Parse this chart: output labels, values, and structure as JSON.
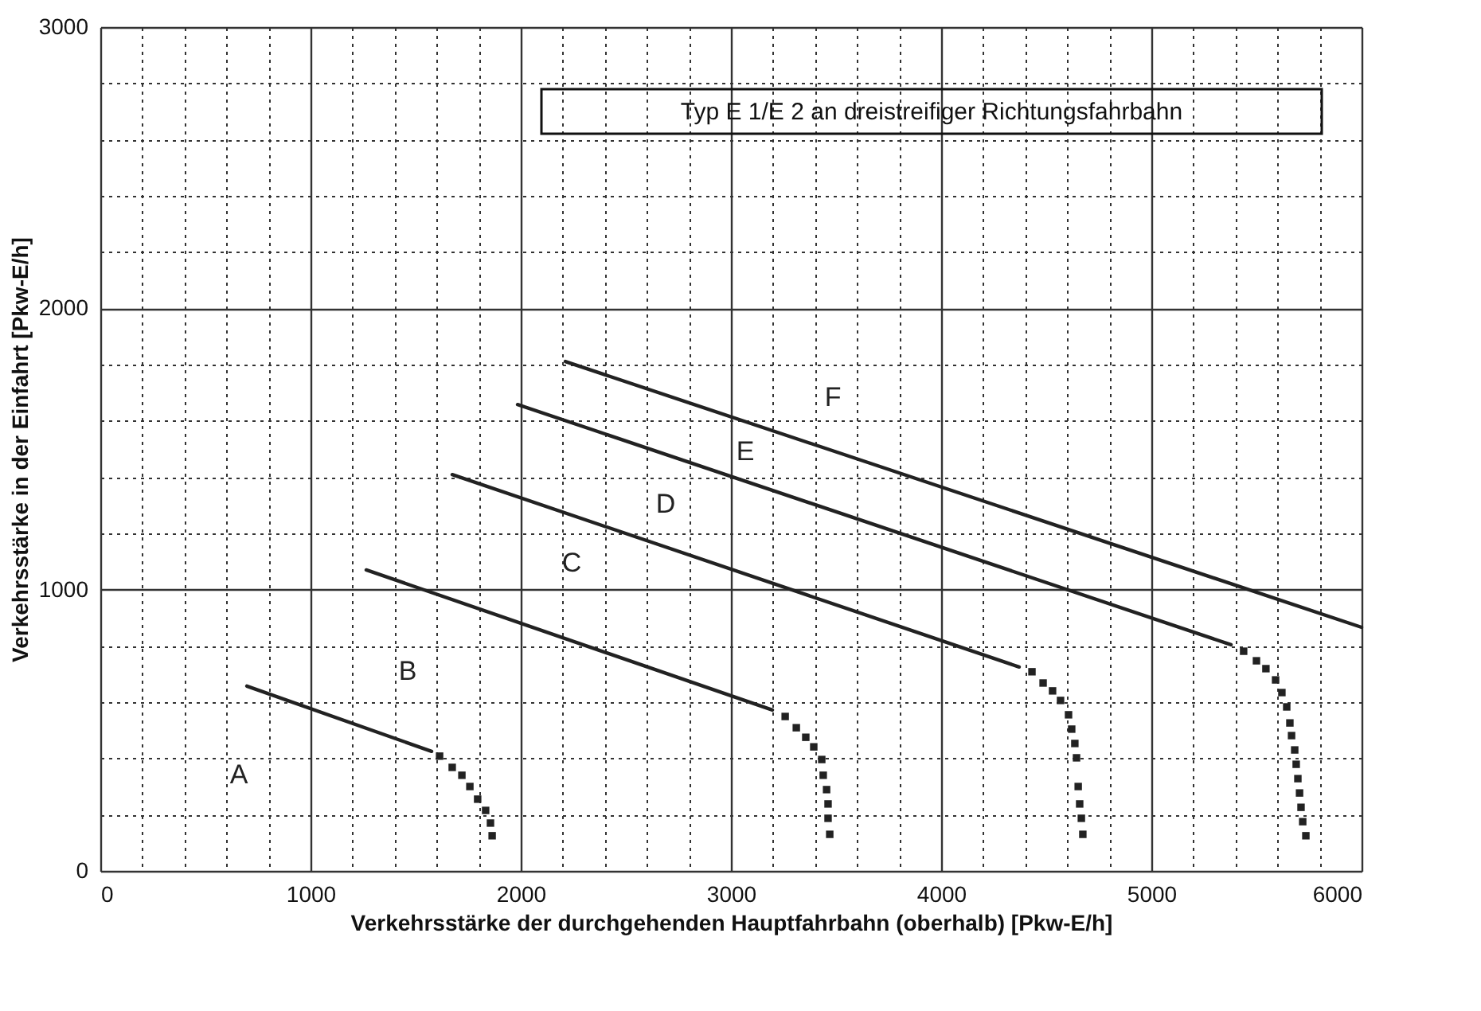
{
  "chart_data": {
    "type": "line",
    "xlabel": "Verkehrsstärke der durchgehenden Hauptfahrbahn (oberhalb) [Pkw-E/h]",
    "ylabel": "Verkehrsstärke in der Einfahrt [Pkw-E/h]",
    "xlim": [
      0,
      6000
    ],
    "ylim": [
      0,
      3000
    ],
    "xticks": [
      0,
      {
        "value": 200,
        "label": null
      },
      {
        "value": 400,
        "label": null
      },
      {
        "value": 600,
        "label": null
      },
      {
        "value": 800,
        "label": null
      },
      1000,
      {
        "value": 1200,
        "label": null
      },
      {
        "value": 1400,
        "label": null
      },
      {
        "value": 1600,
        "label": null
      },
      {
        "value": 1800,
        "label": null
      },
      2000,
      {
        "value": 2200,
        "label": null
      },
      {
        "value": 2400,
        "label": null
      },
      {
        "value": 2600,
        "label": null
      },
      {
        "value": 2800,
        "label": null
      },
      3000,
      {
        "value": 3200,
        "label": null
      },
      {
        "value": 3400,
        "label": null
      },
      {
        "value": 3600,
        "label": null
      },
      {
        "value": 3800,
        "label": null
      },
      4000,
      {
        "value": 4200,
        "label": null
      },
      {
        "value": 4400,
        "label": null
      },
      {
        "value": 4600,
        "label": null
      },
      {
        "value": 4800,
        "label": null
      },
      5000,
      {
        "value": 5200,
        "label": null
      },
      {
        "value": 5400,
        "label": null
      },
      {
        "value": 5600,
        "label": null
      },
      {
        "value": 5800,
        "label": null
      },
      6000
    ],
    "yticks": [
      0,
      {
        "value": 200,
        "label": null
      },
      {
        "value": 400,
        "label": null
      },
      {
        "value": 600,
        "label": null
      },
      {
        "value": 800,
        "label": null
      },
      1000,
      {
        "value": 1200,
        "label": null
      },
      {
        "value": 1400,
        "label": null
      },
      {
        "value": 1600,
        "label": null
      },
      {
        "value": 1800,
        "label": null
      },
      2000,
      {
        "value": 2200,
        "label": null
      },
      {
        "value": 2400,
        "label": null
      },
      {
        "value": 2600,
        "label": null
      },
      {
        "value": 2800,
        "label": null
      },
      3000
    ],
    "grid": true,
    "legend": false,
    "series": [
      {
        "type": "line",
        "line_style": "solid",
        "color": "#222222",
        "x": [
          697,
          1576
        ],
        "values": [
          657,
          425
        ]
      },
      {
        "type": "scatter",
        "marker": "square",
        "color": "#222222",
        "x": [
          1614,
          1674,
          1720,
          1758,
          1795,
          1833,
          1856,
          1864
        ],
        "values": [
          408,
          368,
          340,
          300,
          255,
          215,
          170,
          125
        ]
      },
      {
        "type": "line",
        "line_style": "solid",
        "color": "#222222",
        "x": [
          1265,
          3197
        ],
        "values": [
          1070,
          572
        ]
      },
      {
        "type": "scatter",
        "marker": "square",
        "color": "#222222",
        "x": [
          3258,
          3311,
          3356,
          3394,
          3432,
          3439,
          3455,
          3462,
          3462,
          3470
        ],
        "values": [
          549,
          509,
          475,
          441,
          396,
          340,
          289,
          238,
          187,
          130
        ]
      },
      {
        "type": "line",
        "line_style": "solid",
        "color": "#222222",
        "x": [
          1674,
          4371
        ],
        "values": [
          1409,
          725
        ]
      },
      {
        "type": "scatter",
        "marker": "square",
        "color": "#222222",
        "x": [
          4432,
          4485,
          4530,
          4568,
          4606,
          4621,
          4636,
          4644,
          4652,
          4659,
          4667,
          4674
        ],
        "values": [
          708,
          668,
          640,
          606,
          555,
          504,
          453,
          402,
          300,
          238,
          187,
          130
        ]
      },
      {
        "type": "line",
        "line_style": "solid",
        "color": "#222222",
        "x": [
          1985,
          5379
        ],
        "values": [
          1658,
          804
        ]
      },
      {
        "type": "scatter",
        "marker": "square",
        "color": "#222222",
        "x": [
          5439,
          5500,
          5545,
          5591,
          5621,
          5644,
          5659,
          5667,
          5682,
          5689,
          5697,
          5705,
          5712,
          5720,
          5735
        ],
        "values": [
          781,
          747,
          719,
          679,
          634,
          583,
          526,
          481,
          430,
          379,
          328,
          277,
          226,
          175,
          125
        ]
      },
      {
        "type": "line",
        "line_style": "solid",
        "color": "#222222",
        "x": [
          2212,
          6000
        ],
        "values": [
          1811,
          866
        ]
      }
    ],
    "annotations": [
      "A",
      "B",
      "C",
      "D",
      "E",
      "F",
      "Typ E 1/E 2 an dreistreifiger Richtungsfahrbahn"
    ]
  }
}
